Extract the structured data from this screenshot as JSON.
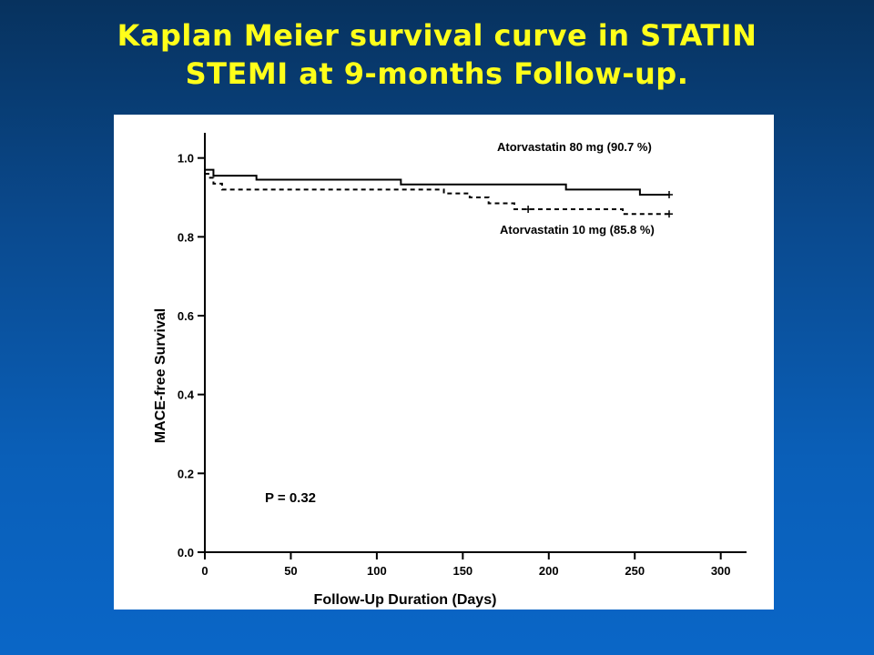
{
  "slide": {
    "title_line1": "Kaplan Meier survival curve in STATIN",
    "title_line2": "STEMI at 9-months Follow-up.",
    "title_color": "#ffff1a",
    "background_color": "#0a5fb8"
  },
  "chart_data": {
    "type": "line",
    "step": true,
    "xlabel": "Follow-Up Duration (Days)",
    "ylabel": "MACE-free Survival",
    "xlim": [
      0,
      315
    ],
    "ylim": [
      0,
      1.05
    ],
    "xticks": [
      0,
      50,
      100,
      150,
      200,
      250,
      300
    ],
    "yticks": [
      0.0,
      0.2,
      0.4,
      0.6,
      0.8,
      1.0
    ],
    "ytick_labels": [
      "0.0",
      "0.2",
      "0.4",
      "0.6",
      "0.8",
      "1.0"
    ],
    "grid": false,
    "series": [
      {
        "name": "Atorvastatin 80 mg (90.7 %)",
        "style": "solid",
        "color": "#000000",
        "x": [
          0,
          5,
          30,
          114,
          210,
          253,
          270
        ],
        "y": [
          0.97,
          0.955,
          0.945,
          0.933,
          0.92,
          0.907,
          0.907
        ],
        "censor_x": [
          270
        ],
        "censor_y": [
          0.907
        ]
      },
      {
        "name": "Atorvastatin 10 mg (85.8 %)",
        "style": "dashed",
        "color": "#000000",
        "x": [
          0,
          3,
          5,
          10,
          139,
          154,
          165,
          180,
          243,
          270
        ],
        "y": [
          0.96,
          0.95,
          0.935,
          0.92,
          0.91,
          0.9,
          0.885,
          0.87,
          0.858,
          0.858
        ],
        "censor_x": [
          188,
          270
        ],
        "censor_y": [
          0.87,
          0.858
        ]
      }
    ],
    "annotations": {
      "series1_label": "Atorvastatin 80 mg (90.7 %)",
      "series2_label": "Atorvastatin 10 mg (85.8 %)",
      "p_value": "P = 0.32"
    }
  }
}
